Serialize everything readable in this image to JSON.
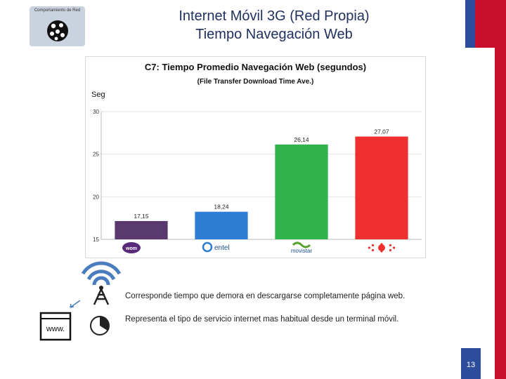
{
  "badge": {
    "label": "Comportamiento de Red",
    "icon": "network-globe-icon"
  },
  "header": {
    "title_line1": "Internet Móvil 3G (Red Propia)",
    "title_line2": "Tiempo Navegación Web"
  },
  "chart_data": {
    "type": "bar",
    "title": "C7: Tiempo Promedio Navegación Web (segundos)",
    "subtitle": "(File Transfer Download Time Ave.)",
    "ylabel": "Seg",
    "ylim": [
      15,
      30
    ],
    "yticks": [
      "15",
      "20",
      "25",
      "30"
    ],
    "categories": [
      "wom",
      "entel",
      "movistar",
      "claro"
    ],
    "category_labels": [
      "wom",
      "entel",
      "movistar",
      ""
    ],
    "values": [
      17.15,
      18.24,
      26.14,
      27.07
    ],
    "value_labels": [
      "17,15",
      "18,24",
      "26,14",
      "27,07"
    ],
    "colors": [
      "#5a3a6e",
      "#2e7dd4",
      "#2fb34a",
      "#ef3030"
    ],
    "grid": true
  },
  "notes": {
    "line1": "Corresponde tiempo que demora en descargarse completamente página web.",
    "line2": "Representa el tipo de servicio internet mas habitual desde un terminal móvil."
  },
  "icons": [
    "antenna-icon",
    "browser-www-icon",
    "clock-pie-icon",
    "transfer-arrows-icon"
  ],
  "icon_texts": {
    "www": "www."
  },
  "footer": {
    "page": "13"
  },
  "colors": {
    "title": "#1f2f5f",
    "flag_blue": "#2b4d9b",
    "flag_red": "#c8102e"
  }
}
